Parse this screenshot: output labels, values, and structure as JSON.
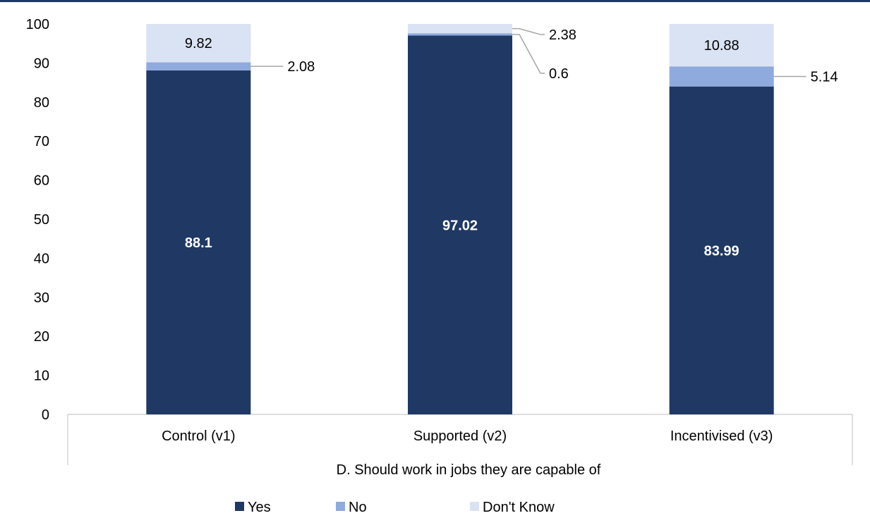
{
  "chart_data": {
    "type": "bar",
    "stacked": true,
    "categories": [
      "Control (v1)",
      "Supported (v2)",
      "Incentivised (v3)"
    ],
    "group_label": "D. Should work in jobs they are capable of",
    "ylim": [
      0,
      100
    ],
    "yticks": [
      0,
      10,
      20,
      30,
      40,
      50,
      60,
      70,
      80,
      90,
      100
    ],
    "legend_position": "bottom",
    "grid": false,
    "series": [
      {
        "name": "Yes",
        "color": "#203864",
        "values": [
          88.1,
          97.02,
          83.99
        ],
        "labels": [
          "88.1",
          "97.02",
          "83.99"
        ]
      },
      {
        "name": "No",
        "color": "#8FAADC",
        "values": [
          2.08,
          0.6,
          5.14
        ],
        "labels": [
          "2.08",
          "0.6",
          "5.14"
        ]
      },
      {
        "name": "Don't Know",
        "color": "#DAE3F3",
        "values": [
          9.82,
          2.38,
          10.88
        ],
        "labels": [
          "9.82",
          "2.38",
          "10.88"
        ]
      }
    ]
  }
}
